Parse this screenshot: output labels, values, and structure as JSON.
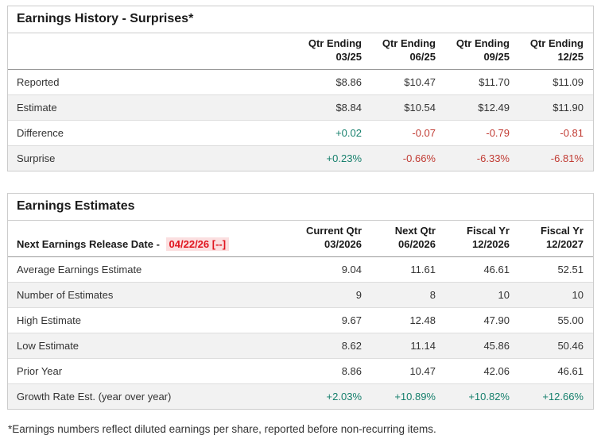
{
  "palette": {
    "positive_green": "#17806d",
    "negative_red": "#c13b33",
    "alert_red_text": "#e0151f",
    "alert_pink_bg": "#fbdfe0",
    "stripe_row_bg": "#f2f2f2",
    "panel_border": "#cccccc"
  },
  "history": {
    "title": "Earnings History - Surprises*",
    "columns": [
      {
        "line1": "Qtr Ending",
        "line2": "03/25"
      },
      {
        "line1": "Qtr Ending",
        "line2": "06/25"
      },
      {
        "line1": "Qtr Ending",
        "line2": "09/25"
      },
      {
        "line1": "Qtr Ending",
        "line2": "12/25"
      }
    ],
    "rows": [
      {
        "label": "Reported",
        "values": [
          "$8.86",
          "$10.47",
          "$11.70",
          "$11.09"
        ]
      },
      {
        "label": "Estimate",
        "values": [
          "$8.84",
          "$10.54",
          "$12.49",
          "$11.90"
        ]
      },
      {
        "label": "Difference",
        "values": [
          "+0.02",
          "-0.07",
          "-0.79",
          "-0.81"
        ]
      },
      {
        "label": "Surprise",
        "values": [
          "+0.23%",
          "-0.66%",
          "-6.33%",
          "-6.81%"
        ]
      }
    ]
  },
  "estimates": {
    "title": "Earnings Estimates",
    "release_label": "Next Earnings Release Date -",
    "release_date": "04/22/26 [--]",
    "columns": [
      {
        "line1": "Current Qtr",
        "line2": "03/2026"
      },
      {
        "line1": "Next Qtr",
        "line2": "06/2026"
      },
      {
        "line1": "Fiscal Yr",
        "line2": "12/2026"
      },
      {
        "line1": "Fiscal Yr",
        "line2": "12/2027"
      }
    ],
    "rows": [
      {
        "label": "Average Earnings Estimate",
        "values": [
          "9.04",
          "11.61",
          "46.61",
          "52.51"
        ]
      },
      {
        "label": "Number of Estimates",
        "values": [
          "9",
          "8",
          "10",
          "10"
        ]
      },
      {
        "label": "High Estimate",
        "values": [
          "9.67",
          "12.48",
          "47.90",
          "55.00"
        ]
      },
      {
        "label": "Low Estimate",
        "values": [
          "8.62",
          "11.14",
          "45.86",
          "50.46"
        ]
      },
      {
        "label": "Prior Year",
        "values": [
          "8.86",
          "10.47",
          "42.06",
          "46.61"
        ]
      },
      {
        "label": "Growth Rate Est. (year over year)",
        "values": [
          "+2.03%",
          "+10.89%",
          "+10.82%",
          "+12.66%"
        ]
      }
    ]
  },
  "footnote": "*Earnings numbers reflect diluted earnings per share, reported before non-recurring items."
}
